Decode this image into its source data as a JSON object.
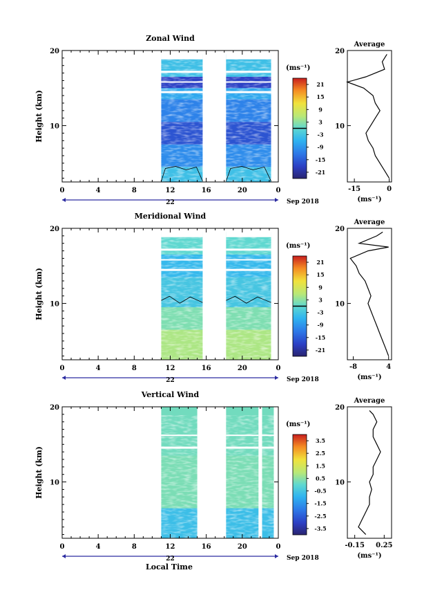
{
  "figure": {
    "xlabel": "Local Time",
    "date_label": "Sep 2018",
    "day_label": "22",
    "unit_label": "(ms⁻¹)",
    "avg_unit_label": "(ms⁻¹)",
    "avg_title": "Average"
  },
  "chart_data": [
    {
      "type": "heatmap",
      "title": "Zonal Wind",
      "ylabel": "Height (km)",
      "x_ticks": [
        "0",
        "4",
        "8",
        "12",
        "16",
        "20",
        "0"
      ],
      "x_range_hours": [
        0,
        24
      ],
      "y_ticks": [
        "10",
        "20"
      ],
      "ylim": [
        2.5,
        20
      ],
      "data_time_blocks_hours": [
        [
          11,
          15.6
        ],
        [
          18.2,
          23.2
        ]
      ],
      "colorbar_ticks": [
        "21",
        "15",
        "9",
        "3",
        "-3",
        "-9",
        "-15",
        "-21"
      ],
      "colorbar_range": [
        -24,
        24
      ],
      "contour_level": 0,
      "layers": [
        {
          "z": [
            2.5,
            4.5
          ],
          "v": -4
        },
        {
          "z": [
            4.5,
            7.5
          ],
          "v": -10
        },
        {
          "z": [
            7.5,
            10.5
          ],
          "v": -16
        },
        {
          "z": [
            10.5,
            13.5
          ],
          "v": -11
        },
        {
          "z": [
            13.5,
            15.0
          ],
          "v": -7
        },
        {
          "z": [
            15.0,
            16.5
          ],
          "v": -18
        },
        {
          "z": [
            16.5,
            19.5
          ],
          "v": -4
        }
      ],
      "profile": {
        "xlim": [
          -18,
          1
        ],
        "x_ticks": [
          "-15",
          "0"
        ],
        "x_tick_values": [
          -15,
          0
        ],
        "points": [
          {
            "z": 3,
            "v": 0
          },
          {
            "z": 4,
            "v": -2
          },
          {
            "z": 5,
            "v": -4
          },
          {
            "z": 6,
            "v": -6
          },
          {
            "z": 7,
            "v": -7
          },
          {
            "z": 8,
            "v": -9
          },
          {
            "z": 9,
            "v": -10
          },
          {
            "z": 10,
            "v": -8
          },
          {
            "z": 11,
            "v": -6
          },
          {
            "z": 12,
            "v": -4
          },
          {
            "z": 13,
            "v": -6
          },
          {
            "z": 14,
            "v": -7
          },
          {
            "z": 15,
            "v": -11
          },
          {
            "z": 15.8,
            "v": -18
          },
          {
            "z": 16.5,
            "v": -10
          },
          {
            "z": 17.5,
            "v": -2
          },
          {
            "z": 18.5,
            "v": -3
          },
          {
            "z": 19.5,
            "v": -1
          }
        ]
      }
    },
    {
      "type": "heatmap",
      "title": "Meridional Wind",
      "ylabel": "Height (km)",
      "x_ticks": [
        "0",
        "4",
        "8",
        "12",
        "16",
        "20",
        "0"
      ],
      "x_range_hours": [
        0,
        24
      ],
      "y_ticks": [
        "10",
        "20"
      ],
      "ylim": [
        2.5,
        20
      ],
      "data_time_blocks_hours": [
        [
          11,
          15.6
        ],
        [
          18.2,
          23.2
        ]
      ],
      "colorbar_ticks": [
        "21",
        "15",
        "9",
        "3",
        "-3",
        "-9",
        "-15",
        "-21"
      ],
      "colorbar_range": [
        -24,
        24
      ],
      "contour_level": 0,
      "layers": [
        {
          "z": [
            2.5,
            6.5
          ],
          "v": 5
        },
        {
          "z": [
            6.5,
            9.5
          ],
          "v": 2
        },
        {
          "z": [
            9.5,
            13.5
          ],
          "v": -3
        },
        {
          "z": [
            13.5,
            16.5
          ],
          "v": -5
        },
        {
          "z": [
            16.5,
            19.5
          ],
          "v": 0
        }
      ],
      "profile": {
        "xlim": [
          -10,
          5
        ],
        "x_ticks": [
          "-8",
          "4"
        ],
        "x_tick_values": [
          -8,
          4
        ],
        "points": [
          {
            "z": 3,
            "v": 4
          },
          {
            "z": 4,
            "v": 3
          },
          {
            "z": 5,
            "v": 2
          },
          {
            "z": 6,
            "v": 1
          },
          {
            "z": 7,
            "v": 0
          },
          {
            "z": 8,
            "v": -1
          },
          {
            "z": 9,
            "v": -2
          },
          {
            "z": 10,
            "v": -3
          },
          {
            "z": 11,
            "v": -2
          },
          {
            "z": 12,
            "v": -3
          },
          {
            "z": 13,
            "v": -4
          },
          {
            "z": 14,
            "v": -6
          },
          {
            "z": 15,
            "v": -7
          },
          {
            "z": 16,
            "v": -9
          },
          {
            "z": 17,
            "v": -3
          },
          {
            "z": 17.5,
            "v": 4
          },
          {
            "z": 18,
            "v": -6
          },
          {
            "z": 19,
            "v": 0
          },
          {
            "z": 19.5,
            "v": 2
          }
        ]
      }
    },
    {
      "type": "heatmap",
      "title": "Vertical Wind",
      "ylabel": "Height (km)",
      "x_ticks": [
        "0",
        "4",
        "8",
        "12",
        "16",
        "20",
        "0"
      ],
      "x_range_hours": [
        0,
        24
      ],
      "y_ticks": [
        "10",
        "20"
      ],
      "ylim": [
        2.5,
        20
      ],
      "data_time_blocks_hours": [
        [
          11,
          15
        ],
        [
          18.2,
          21.8
        ],
        [
          22.2,
          23.5
        ]
      ],
      "colorbar_ticks": [
        "3.5",
        "2.5",
        "1.5",
        "0.5",
        "-0.5",
        "-1.5",
        "-2.5",
        "-3.5"
      ],
      "colorbar_range": [
        -4,
        4
      ],
      "contour_level": null,
      "layers": [
        {
          "z": [
            2.5,
            6.5
          ],
          "v": -0.7
        },
        {
          "z": [
            6.5,
            13.5
          ],
          "v": 0.3
        },
        {
          "z": [
            13.5,
            20
          ],
          "v": 0.2
        }
      ],
      "profile": {
        "xlim": [
          -0.25,
          0.35
        ],
        "x_ticks": [
          "-0.15",
          "0.25"
        ],
        "x_tick_values": [
          -0.15,
          0.25
        ],
        "points": [
          {
            "z": 3,
            "v": 0.0
          },
          {
            "z": 4,
            "v": -0.1
          },
          {
            "z": 5,
            "v": -0.05
          },
          {
            "z": 6,
            "v": 0.0
          },
          {
            "z": 7,
            "v": 0.05
          },
          {
            "z": 8,
            "v": 0.05
          },
          {
            "z": 9,
            "v": 0.08
          },
          {
            "z": 10,
            "v": 0.05
          },
          {
            "z": 11,
            "v": 0.1
          },
          {
            "z": 12,
            "v": 0.1
          },
          {
            "z": 13,
            "v": 0.15
          },
          {
            "z": 14,
            "v": 0.2
          },
          {
            "z": 15,
            "v": 0.15
          },
          {
            "z": 16,
            "v": 0.1
          },
          {
            "z": 17,
            "v": 0.1
          },
          {
            "z": 18,
            "v": 0.15
          },
          {
            "z": 19,
            "v": 0.1
          },
          {
            "z": 19.5,
            "v": 0.05
          }
        ]
      }
    }
  ]
}
